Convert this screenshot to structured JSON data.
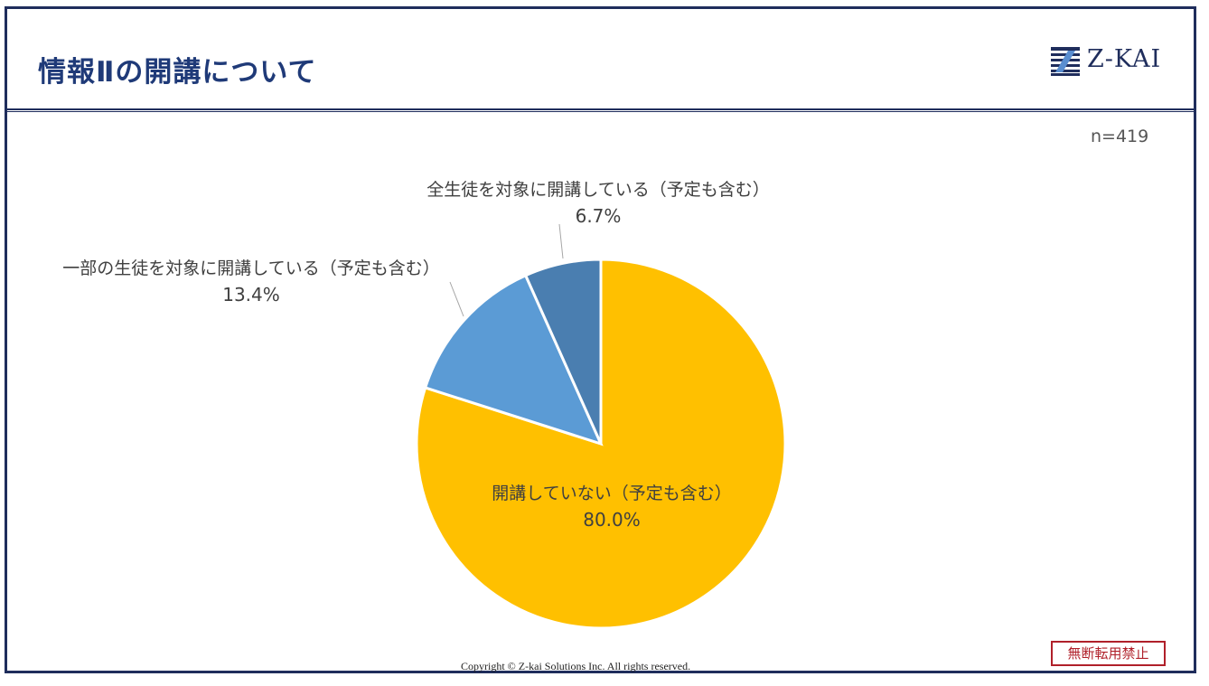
{
  "header": {
    "title": "情報Ⅱの開講について",
    "logo_text": "Z-KAI",
    "logo_icon": "z-kai-logo-icon"
  },
  "sample_size": "n=419",
  "footer": {
    "copyright": "Copyright © Z-kai Solutions Inc. All rights reserved.",
    "stamp": "無断転用禁止"
  },
  "colors": {
    "frame": "#1f2d5c",
    "title": "#1f3a78",
    "stamp": "#b0202a"
  },
  "chart_data": {
    "type": "pie",
    "title": "",
    "start_angle": 0,
    "direction": "clockwise",
    "slices": [
      {
        "label": "開講していない（予定も含む）",
        "value": 80.0,
        "display": "80.0%",
        "color": "#ffc000"
      },
      {
        "label": "一部の生徒を対象に開講している（予定も含む）",
        "value": 13.4,
        "display": "13.4%",
        "color": "#5b9bd5"
      },
      {
        "label": "全生徒を対象に開講している（予定も含む）",
        "value": 6.7,
        "display": "6.7%",
        "color": "#4a7eb0"
      }
    ]
  }
}
